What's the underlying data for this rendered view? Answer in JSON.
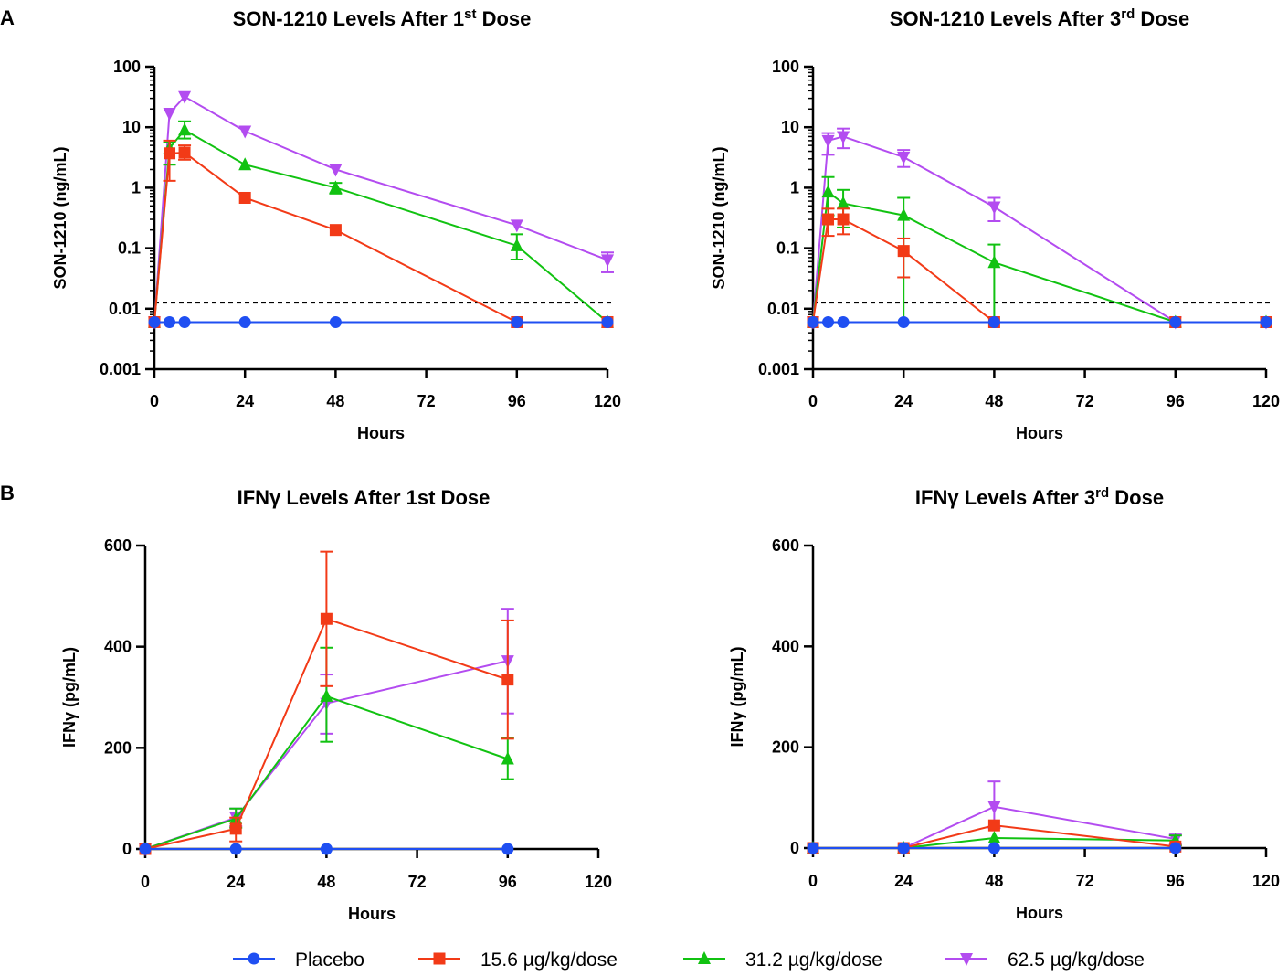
{
  "figure": {
    "panel_labels": [
      "A",
      "B"
    ]
  },
  "series_styles": [
    {
      "name": "Placebo",
      "color": "#1f4ff2",
      "marker": "circle"
    },
    {
      "name": "15.6 µg/kg/dose",
      "color": "#f23a17",
      "marker": "square"
    },
    {
      "name": "31.2 µg/kg/dose",
      "color": "#11c211",
      "marker": "triangle-up"
    },
    {
      "name": "62.5 µg/kg/dose",
      "color": "#b34cf0",
      "marker": "triangle-down"
    }
  ],
  "legend": {
    "items": [
      "Placebo",
      "15.6 µg/kg/dose",
      "31.2 µg/kg/dose",
      "62.5 µg/kg/dose"
    ]
  },
  "chart_data": [
    {
      "id": "son1210-dose1",
      "type": "line",
      "title": "SON-1210 Levels After 1",
      "title_sup": "st",
      "title_suffix": " Dose",
      "xlabel": "Hours",
      "ylabel": "SON-1210 (ng/mL)",
      "yscale": "log",
      "xlim": [
        0,
        120
      ],
      "ylim": [
        0.001,
        100
      ],
      "xticks": [
        0,
        24,
        48,
        72,
        96,
        120
      ],
      "xtick_labels": [
        "0",
        "24",
        "48",
        "72",
        "96",
        "120"
      ],
      "yticks": [
        0.001,
        0.01,
        0.1,
        1,
        10,
        100
      ],
      "ytick_labels": [
        "0.001",
        "0.01",
        "0.1",
        "1",
        "10",
        "100"
      ],
      "reference_line": 0.0125,
      "series": [
        {
          "name": "Placebo",
          "x": [
            0,
            4,
            8,
            24,
            48,
            96,
            120
          ],
          "y": [
            0.006,
            0.006,
            0.006,
            0.006,
            0.006,
            0.006,
            0.006
          ],
          "err": [
            null,
            null,
            null,
            null,
            null,
            null,
            null
          ]
        },
        {
          "name": "15.6 µg/kg/dose",
          "x": [
            0,
            4,
            8,
            24,
            48,
            96,
            120
          ],
          "y": [
            0.006,
            3.7,
            3.8,
            0.68,
            0.2,
            0.006,
            0.006
          ],
          "err": [
            null,
            [
              1.3,
              6.0
            ],
            [
              2.9,
              5.0
            ],
            null,
            null,
            null,
            null
          ]
        },
        {
          "name": "31.2 µg/kg/dose",
          "x": [
            0,
            4,
            8,
            24,
            48,
            96,
            120
          ],
          "y": [
            0.006,
            4.5,
            9.0,
            2.4,
            1.0,
            0.11,
            0.006
          ],
          "err": [
            null,
            [
              2.4,
              5.6
            ],
            [
              6.5,
              12.5
            ],
            null,
            [
              0.8,
              1.2
            ],
            [
              0.065,
              0.17
            ],
            null
          ]
        },
        {
          "name": "62.5 µg/kg/dose",
          "x": [
            0,
            4,
            8,
            24,
            48,
            96,
            120
          ],
          "y": [
            0.006,
            17,
            32,
            8.6,
            2.0,
            0.24,
            0.064
          ],
          "err": [
            null,
            null,
            null,
            null,
            null,
            null,
            [
              0.04,
              0.085
            ]
          ]
        }
      ]
    },
    {
      "id": "son1210-dose3",
      "type": "line",
      "title": "SON-1210 Levels After 3",
      "title_sup": "rd",
      "title_suffix": " Dose",
      "xlabel": "Hours",
      "ylabel": "SON-1210 (ng/mL)",
      "yscale": "log",
      "xlim": [
        0,
        120
      ],
      "ylim": [
        0.001,
        100
      ],
      "xticks": [
        0,
        24,
        48,
        72,
        96,
        120
      ],
      "xtick_labels": [
        "0",
        "24",
        "48",
        "72",
        "96",
        "120"
      ],
      "yticks": [
        0.001,
        0.01,
        0.1,
        1,
        10,
        100
      ],
      "ytick_labels": [
        "0.001",
        "0.01",
        "0.1",
        "1",
        "10",
        "100"
      ],
      "reference_line": 0.0125,
      "series": [
        {
          "name": "Placebo",
          "x": [
            0,
            4,
            8,
            24,
            48,
            96,
            120
          ],
          "y": [
            0.006,
            0.006,
            0.006,
            0.006,
            0.006,
            0.006,
            0.006
          ],
          "err": [
            null,
            null,
            null,
            null,
            null,
            null,
            null
          ]
        },
        {
          "name": "15.6 µg/kg/dose",
          "x": [
            0,
            4,
            8,
            24,
            48,
            96,
            120
          ],
          "y": [
            0.006,
            0.3,
            0.3,
            0.09,
            0.006,
            0.006,
            0.006
          ],
          "err": [
            null,
            [
              0.16,
              0.45
            ],
            [
              0.17,
              0.45
            ],
            [
              0.033,
              0.145
            ],
            null,
            null,
            null
          ]
        },
        {
          "name": "31.2 µg/kg/dose",
          "x": [
            0,
            4,
            8,
            24,
            48,
            96,
            120
          ],
          "y": [
            0.006,
            0.85,
            0.55,
            0.35,
            0.058,
            0.006,
            0.006
          ],
          "err": [
            null,
            [
              0.35,
              1.5
            ],
            [
              0.22,
              0.92
            ],
            [
              0.006,
              0.68
            ],
            [
              0.006,
              0.115
            ],
            null,
            null
          ]
        },
        {
          "name": "62.5 µg/kg/dose",
          "x": [
            0,
            4,
            8,
            24,
            48,
            96,
            120
          ],
          "y": [
            0.006,
            6.0,
            7.0,
            3.2,
            0.48,
            0.006,
            0.006
          ],
          "err": [
            null,
            [
              3.5,
              8.0
            ],
            [
              4.5,
              9.5
            ],
            [
              2.2,
              4.2
            ],
            [
              0.28,
              0.68
            ],
            null,
            null
          ]
        }
      ]
    },
    {
      "id": "ifng-dose1",
      "type": "line",
      "title": "IFNγ Levels After 1st Dose",
      "title_sup": "",
      "title_suffix": "",
      "xlabel": "Hours",
      "ylabel": "IFNγ (pg/mL)",
      "yscale": "linear",
      "xlim": [
        0,
        120
      ],
      "ylim": [
        0,
        600
      ],
      "xticks": [
        0,
        24,
        48,
        72,
        96,
        120
      ],
      "xtick_labels": [
        "0",
        "24",
        "48",
        "72",
        "96",
        "120"
      ],
      "yticks": [
        0,
        200,
        400,
        600
      ],
      "ytick_labels": [
        "0",
        "200",
        "400",
        "600"
      ],
      "reference_line": null,
      "series": [
        {
          "name": "Placebo",
          "x": [
            0,
            24,
            48,
            96
          ],
          "y": [
            0,
            0,
            0,
            0
          ],
          "err": [
            null,
            null,
            null,
            null
          ]
        },
        {
          "name": "15.6 µg/kg/dose",
          "x": [
            0,
            24,
            48,
            96
          ],
          "y": [
            0,
            40,
            455,
            335
          ],
          "err": [
            null,
            [
              15,
              62
            ],
            [
              322,
              588
            ],
            [
              218,
              452
            ]
          ]
        },
        {
          "name": "31.2 µg/kg/dose",
          "x": [
            0,
            24,
            48,
            96
          ],
          "y": [
            0,
            60,
            302,
            178
          ],
          "err": [
            null,
            [
              42,
              80
            ],
            [
              212,
              398
            ],
            [
              138,
              220
            ]
          ]
        },
        {
          "name": "62.5 µg/kg/dose",
          "x": [
            0,
            24,
            48,
            96
          ],
          "y": [
            0,
            62,
            288,
            372
          ],
          "err": [
            null,
            [
              45,
              80
            ],
            [
              228,
              345
            ],
            [
              268,
              475
            ]
          ]
        }
      ]
    },
    {
      "id": "ifng-dose3",
      "type": "line",
      "title": "IFNγ Levels After 3",
      "title_sup": "rd",
      "title_suffix": " Dose",
      "xlabel": "Hours",
      "ylabel": "IFNγ (pg/mL)",
      "yscale": "linear",
      "xlim": [
        0,
        120
      ],
      "ylim": [
        0,
        600
      ],
      "xticks": [
        0,
        24,
        48,
        72,
        96,
        120
      ],
      "xtick_labels": [
        "0",
        "24",
        "48",
        "72",
        "96",
        "120"
      ],
      "yticks": [
        0,
        200,
        400,
        600
      ],
      "ytick_labels": [
        "0",
        "200",
        "400",
        "600"
      ],
      "reference_line": null,
      "series": [
        {
          "name": "Placebo",
          "x": [
            0,
            24,
            48,
            96
          ],
          "y": [
            0,
            0,
            0,
            0
          ],
          "err": [
            null,
            null,
            null,
            null
          ]
        },
        {
          "name": "15.6 µg/kg/dose",
          "x": [
            0,
            24,
            48,
            96
          ],
          "y": [
            0,
            0,
            45,
            3
          ],
          "err": [
            null,
            null,
            null,
            null
          ]
        },
        {
          "name": "31.2 µg/kg/dose",
          "x": [
            0,
            24,
            48,
            96
          ],
          "y": [
            0,
            0,
            20,
            15
          ],
          "err": [
            null,
            null,
            null,
            [
              5,
              25
            ]
          ]
        },
        {
          "name": "62.5 µg/kg/dose",
          "x": [
            0,
            24,
            48,
            96
          ],
          "y": [
            0,
            0,
            82,
            18
          ],
          "err": [
            null,
            null,
            [
              40,
              132
            ],
            [
              8,
              26
            ]
          ]
        }
      ]
    }
  ]
}
